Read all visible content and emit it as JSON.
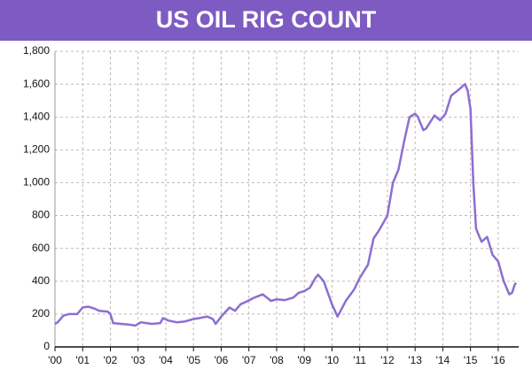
{
  "chart_data": {
    "type": "line",
    "title": "US OIL RIG COUNT",
    "color": "#8c6fd1",
    "title_background": "#7d5bc2",
    "grid": true,
    "x": [
      2000,
      2000.1,
      2000.3,
      2000.5,
      2000.8,
      2001.0,
      2001.2,
      2001.4,
      2001.6,
      2001.9,
      2002.0,
      2002.1,
      2002.4,
      2002.7,
      2002.9,
      2003.1,
      2003.3,
      2003.5,
      2003.8,
      2003.9,
      2004.1,
      2004.4,
      2004.7,
      2005.0,
      2005.2,
      2005.5,
      2005.7,
      2005.8,
      2006.0,
      2006.3,
      2006.5,
      2006.7,
      2006.9,
      2007.2,
      2007.5,
      2007.8,
      2008.0,
      2008.3,
      2008.6,
      2008.8,
      2009.0,
      2009.2,
      2009.4,
      2009.5,
      2009.7,
      2010.0,
      2010.2,
      2010.5,
      2010.8,
      2011.0,
      2011.3,
      2011.5,
      2011.7,
      2012.0,
      2012.2,
      2012.4,
      2012.6,
      2012.8,
      2013.0,
      2013.1,
      2013.3,
      2013.4,
      2013.7,
      2013.9,
      2014.1,
      2014.3,
      2014.6,
      2014.8,
      2014.9,
      2015.0,
      2015.1,
      2015.2,
      2015.4,
      2015.6,
      2015.8,
      2016.0,
      2016.2,
      2016.4,
      2016.5,
      2016.6,
      2016.65
    ],
    "values": [
      140,
      150,
      190,
      200,
      200,
      240,
      245,
      235,
      220,
      215,
      200,
      145,
      140,
      135,
      130,
      150,
      145,
      140,
      145,
      175,
      160,
      150,
      155,
      170,
      175,
      185,
      170,
      140,
      185,
      240,
      220,
      260,
      275,
      300,
      320,
      280,
      290,
      285,
      300,
      330,
      340,
      360,
      420,
      440,
      400,
      260,
      185,
      280,
      350,
      420,
      500,
      660,
      710,
      800,
      1000,
      1080,
      1250,
      1400,
      1420,
      1400,
      1320,
      1330,
      1410,
      1380,
      1420,
      1530,
      1570,
      1600,
      1560,
      1450,
      1000,
      720,
      640,
      670,
      560,
      520,
      400,
      320,
      330,
      380,
      390
    ],
    "xlim": [
      2000,
      2016.74
    ],
    "xticks": [
      {
        "value": 2000,
        "label": "'00"
      },
      {
        "value": 2001,
        "label": "'01"
      },
      {
        "value": 2002,
        "label": "'02"
      },
      {
        "value": 2003,
        "label": "'03"
      },
      {
        "value": 2004,
        "label": "'04"
      },
      {
        "value": 2005,
        "label": "'05"
      },
      {
        "value": 2006,
        "label": "'06"
      },
      {
        "value": 2007,
        "label": "'07"
      },
      {
        "value": 2008,
        "label": "'08"
      },
      {
        "value": 2009,
        "label": "'09"
      },
      {
        "value": 2010,
        "label": "'10"
      },
      {
        "value": 2011,
        "label": "'11"
      },
      {
        "value": 2012,
        "label": "'12"
      },
      {
        "value": 2013,
        "label": "'13"
      },
      {
        "value": 2014,
        "label": "'14"
      },
      {
        "value": 2015,
        "label": "'15"
      },
      {
        "value": 2016,
        "label": "'16"
      }
    ],
    "ylim": [
      0,
      1800
    ],
    "yticks": [
      0,
      200,
      400,
      600,
      800,
      {
        "value": 1000,
        "label": "1,000"
      },
      {
        "value": 1200,
        "label": "1,200"
      },
      {
        "value": 1400,
        "label": "1,400"
      },
      {
        "value": 1600,
        "label": "1,600"
      },
      {
        "value": 1800,
        "label": "1,800"
      }
    ]
  }
}
